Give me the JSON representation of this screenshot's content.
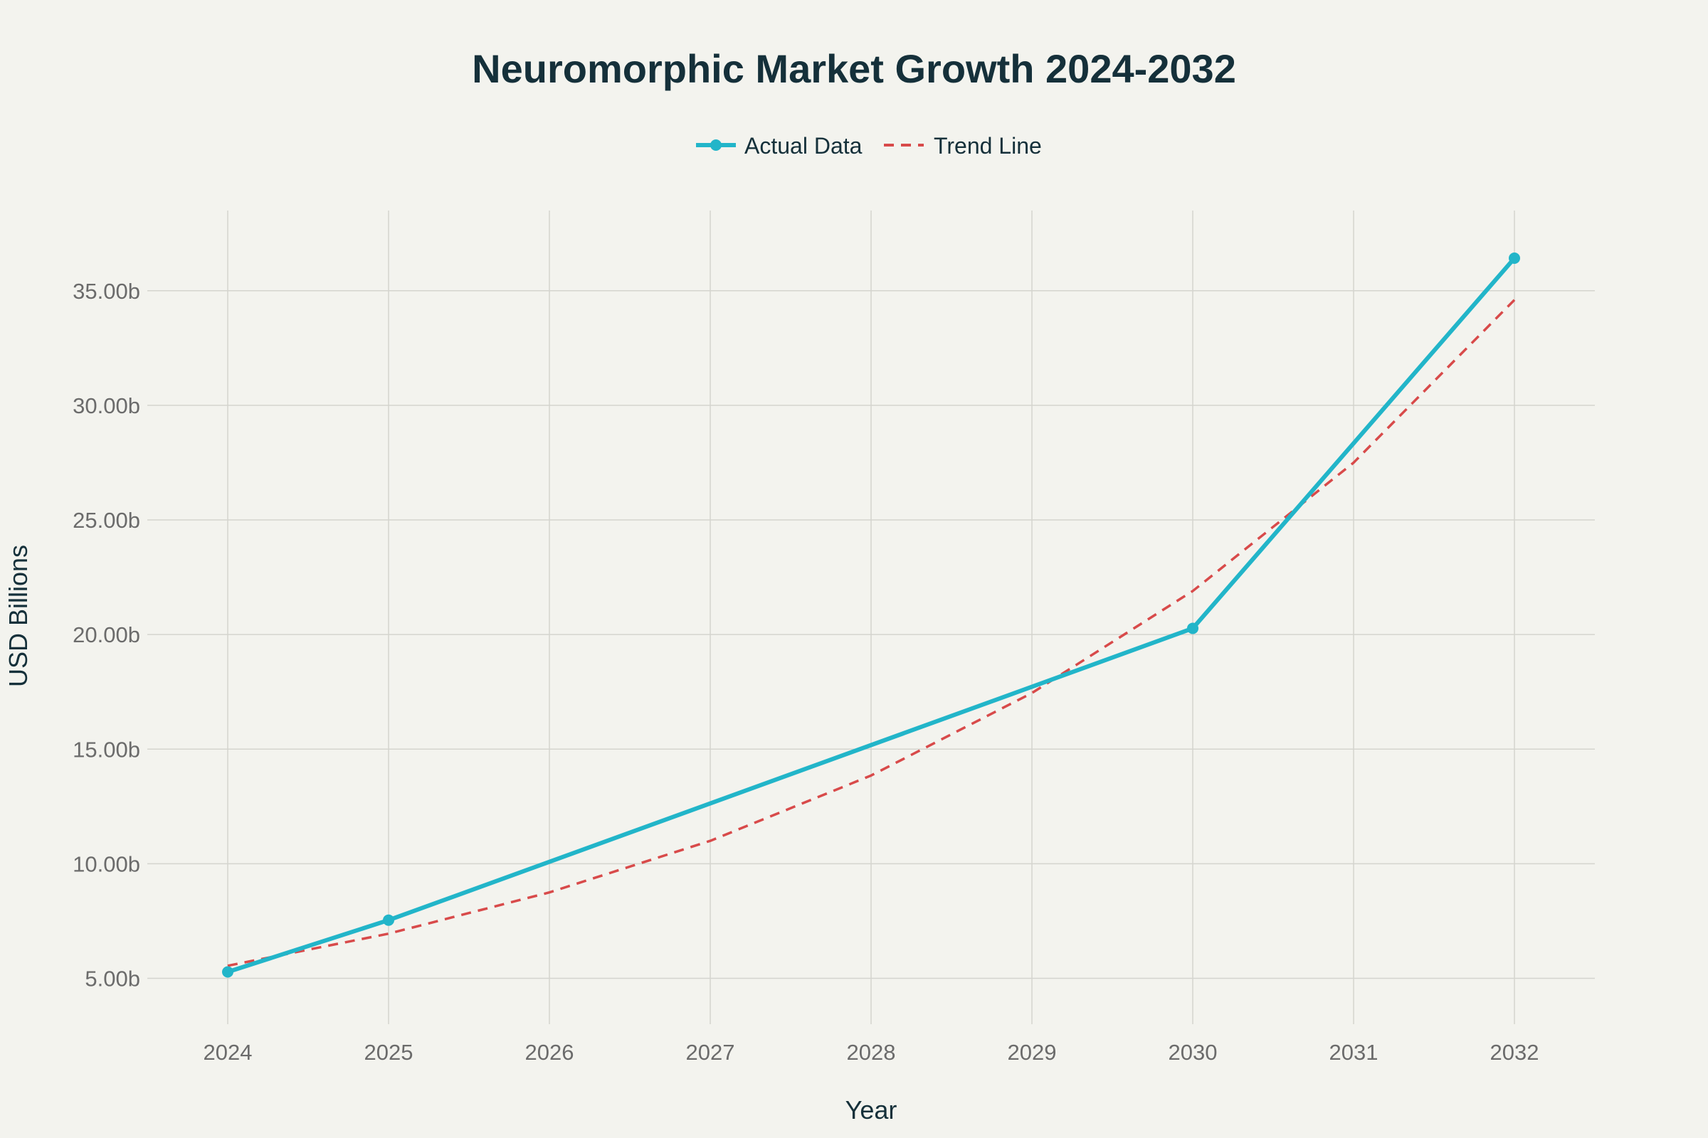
{
  "chart_data": {
    "type": "line",
    "title": "Neuromorphic Market Growth 2024-2032",
    "xlabel": "Year",
    "ylabel": "USD Billions",
    "x": [
      2024,
      2025,
      2026,
      2027,
      2028,
      2029,
      2030,
      2031,
      2032
    ],
    "xlim": [
      2023.5,
      2032.5
    ],
    "ylim": [
      3.0,
      38.5
    ],
    "yticks": [
      5,
      10,
      15,
      20,
      25,
      30,
      35
    ],
    "ytick_labels": [
      "5.00b",
      "10.00b",
      "15.00b",
      "20.00b",
      "25.00b",
      "30.00b",
      "35.00b"
    ],
    "xtick_labels": [
      "2024",
      "2025",
      "2026",
      "2027",
      "2028",
      "2029",
      "2030",
      "2031",
      "2032"
    ],
    "grid": true,
    "legend_position": "top-center",
    "series": [
      {
        "name": "Actual Data",
        "style": "solid-markers",
        "color": "#22b5c9",
        "x": [
          2024,
          2025,
          2030,
          2032
        ],
        "values": [
          5.28,
          7.54,
          20.27,
          36.42
        ]
      },
      {
        "name": "Trend Line",
        "style": "dashed",
        "color": "#d84a4a",
        "x": [
          2024,
          2025,
          2026,
          2027,
          2028,
          2029,
          2030,
          2031,
          2032
        ],
        "values": [
          5.55,
          6.95,
          8.75,
          11.0,
          13.85,
          17.45,
          21.9,
          27.5,
          34.6
        ]
      }
    ]
  }
}
